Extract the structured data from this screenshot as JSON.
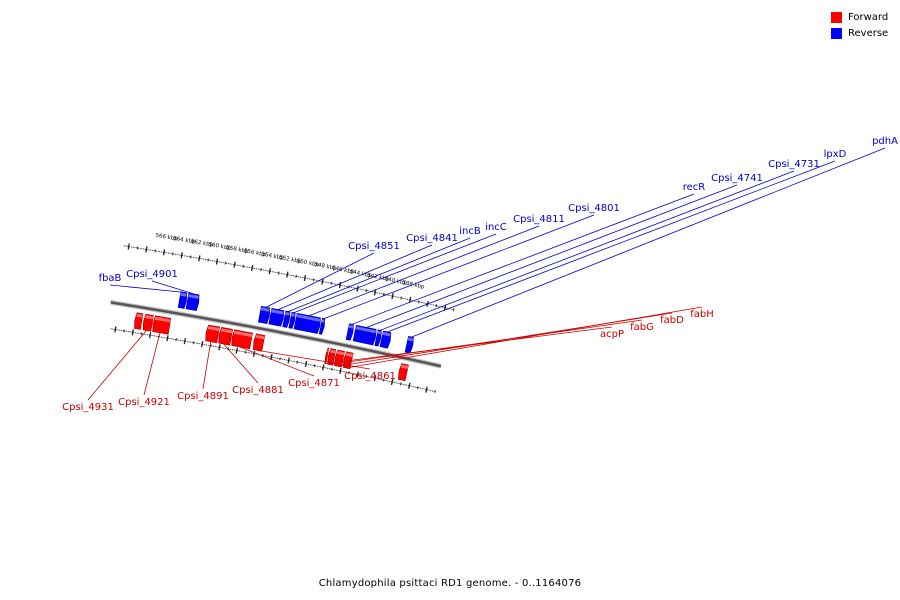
{
  "legend": [
    {
      "label": "Forward",
      "color": "#ff0000"
    },
    {
      "label": "Reverse",
      "color": "#0000ff"
    }
  ],
  "caption": "Chlamydophila psittaci RD1 genome. - 0..1164076",
  "scale_labels": [
    "566 kbp",
    "564 kbp",
    "562 kbp",
    "560 kbp",
    "558 kbp",
    "556 kbp",
    "554 kbp",
    "552 kbp",
    "550 kbp",
    "548 kbp",
    "546 kbp",
    "544 kbp",
    "542 kbp",
    "540 kbp",
    "538 kbp"
  ],
  "reverse_genes": [
    {
      "label": "fbaB",
      "start_kbp": 563.4,
      "end_kbp": 562.6
    },
    {
      "label": "Cpsi_4901",
      "start_kbp": 562.5,
      "end_kbp": 561.2
    },
    {
      "label": "Cpsi_4851",
      "start_kbp": 554.2,
      "end_kbp": 553.1
    },
    {
      "label": "Cpsi_4841",
      "start_kbp": 553.0,
      "end_kbp": 551.5
    },
    {
      "label": "incB",
      "start_kbp": 551.4,
      "end_kbp": 550.8
    },
    {
      "label": "incC",
      "start_kbp": 550.7,
      "end_kbp": 550.2
    },
    {
      "label": "Cpsi_4811",
      "start_kbp": 550.1,
      "end_kbp": 547.3
    },
    {
      "label": "Cpsi_4801",
      "start_kbp": 547.2,
      "end_kbp": 546.8
    },
    {
      "label": "recR",
      "start_kbp": 544.1,
      "end_kbp": 543.5
    },
    {
      "label": "Cpsi_4741",
      "start_kbp": 543.3,
      "end_kbp": 540.9
    },
    {
      "label": "Cpsi_4731",
      "start_kbp": 540.8,
      "end_kbp": 540.3
    },
    {
      "label": "lpxD",
      "start_kbp": 540.2,
      "end_kbp": 539.2
    },
    {
      "label": "pdhA",
      "start_kbp": 537.3,
      "end_kbp": 536.6
    }
  ],
  "forward_genes": [
    {
      "label": "",
      "start_kbp": 568.0,
      "end_kbp": 567.2
    },
    {
      "label": "Cpsi_4931",
      "start_kbp": 567.0,
      "end_kbp": 566.0
    },
    {
      "label": "Cpsi_4921",
      "start_kbp": 565.9,
      "end_kbp": 564.0
    },
    {
      "label": "Cpsi_4891",
      "start_kbp": 559.8,
      "end_kbp": 558.4
    },
    {
      "label": "Cpsi_4881",
      "start_kbp": 558.3,
      "end_kbp": 556.9
    },
    {
      "label": "Cpsi_4871",
      "start_kbp": 556.8,
      "end_kbp": 554.6
    },
    {
      "label": "Cpsi_4861",
      "start_kbp": 554.3,
      "end_kbp": 553.2
    },
    {
      "label": "acpP",
      "start_kbp": 546.0,
      "end_kbp": 545.8
    },
    {
      "label": "fabG",
      "start_kbp": 545.7,
      "end_kbp": 545.0
    },
    {
      "label": "fabD",
      "start_kbp": 544.9,
      "end_kbp": 544.0
    },
    {
      "label": "fabH",
      "start_kbp": 543.9,
      "end_kbp": 543.0
    },
    {
      "label": "",
      "start_kbp": 537.5,
      "end_kbp": 536.6
    }
  ]
}
